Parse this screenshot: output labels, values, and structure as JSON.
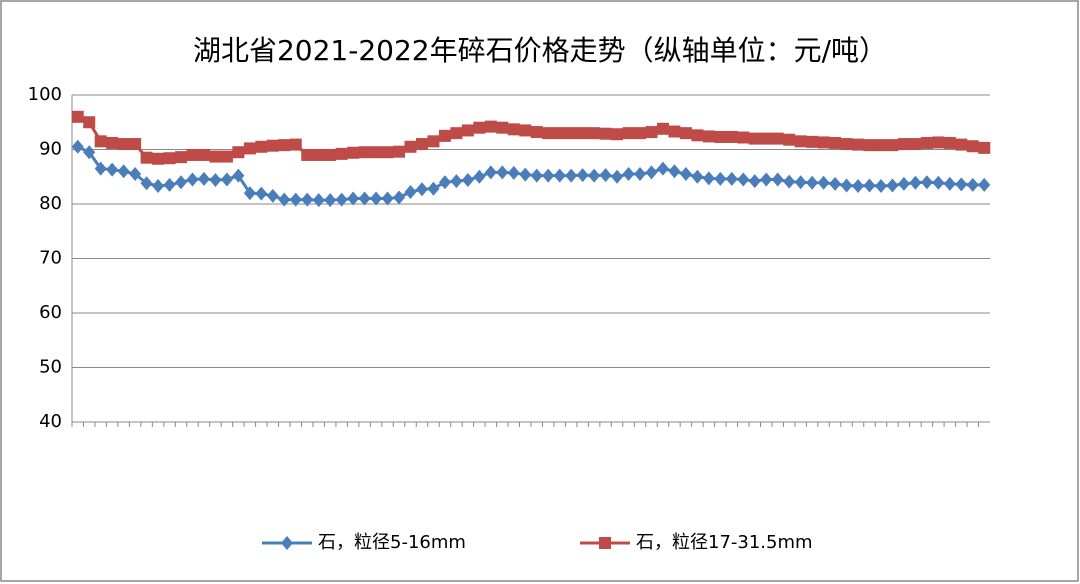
{
  "chart_data": {
    "type": "line",
    "title": "湖北省2021-2022年碎石价格走势（纵轴单位：元/吨）",
    "categories": [
      null,
      null,
      null,
      null,
      null,
      null,
      null,
      null,
      null,
      null,
      null,
      null,
      null,
      null,
      null,
      null,
      null,
      null,
      null,
      null,
      null,
      null,
      null,
      null,
      null,
      null,
      null,
      null,
      null,
      null,
      null,
      null,
      null,
      null,
      null,
      null,
      null,
      null,
      null,
      null,
      null,
      null,
      null,
      null,
      null,
      null,
      null,
      null,
      null,
      null,
      null,
      null,
      null,
      null,
      null,
      null,
      null,
      null,
      null,
      null,
      null,
      null,
      null,
      null,
      null,
      null,
      null,
      null,
      null,
      null,
      null,
      null,
      null,
      null,
      null,
      null,
      null,
      null,
      null,
      null
    ],
    "series": [
      {
        "name": "石，粒径5-16mm",
        "color": "#4a7ebb",
        "marker": "diamond",
        "values": [
          90.5,
          89.5,
          86.5,
          86.3,
          86,
          85.5,
          83.8,
          83.3,
          83.5,
          84,
          84.5,
          84.6,
          84.4,
          84.5,
          85.2,
          82,
          81.9,
          81.5,
          80.8,
          80.8,
          80.8,
          80.7,
          80.7,
          80.8,
          81,
          81,
          81,
          81,
          81.2,
          82.2,
          82.7,
          82.8,
          84,
          84.2,
          84.4,
          85,
          85.8,
          85.8,
          85.7,
          85.4,
          85.2,
          85.2,
          85.2,
          85.2,
          85.3,
          85.2,
          85.3,
          85,
          85.5,
          85.5,
          85.8,
          86.5,
          86,
          85.5,
          85,
          84.7,
          84.6,
          84.6,
          84.5,
          84.2,
          84.5,
          84.5,
          84.1,
          84,
          83.9,
          83.9,
          83.7,
          83.4,
          83.3,
          83.4,
          83.3,
          83.4,
          83.7,
          83.9,
          84,
          83.9,
          83.7,
          83.6,
          83.5,
          83.5
        ]
      },
      {
        "name": "石，粒径17-31.5mm",
        "color": "#be4b48",
        "marker": "square",
        "values": [
          96,
          95,
          91.5,
          91.2,
          91,
          91,
          88.5,
          88.3,
          88.4,
          88.6,
          89,
          89,
          88.7,
          88.7,
          89.5,
          90.2,
          90.5,
          90.7,
          90.8,
          90.9,
          89,
          89,
          89,
          89.2,
          89.4,
          89.5,
          89.5,
          89.5,
          89.6,
          90.5,
          91,
          91.5,
          92.5,
          93,
          93.5,
          94,
          94.2,
          94,
          93.7,
          93.5,
          93.2,
          93,
          93,
          93,
          93,
          93,
          92.9,
          92.8,
          93,
          93,
          93.2,
          93.8,
          93.3,
          93,
          92.6,
          92.4,
          92.3,
          92.3,
          92.2,
          92,
          92,
          92,
          91.8,
          91.5,
          91.4,
          91.3,
          91.2,
          91,
          90.9,
          90.8,
          90.8,
          90.8,
          91,
          91,
          91.2,
          91.3,
          91.2,
          90.9,
          90.6,
          90.3
        ]
      }
    ],
    "ylim": [
      40,
      100
    ],
    "yticks": [
      40,
      50,
      60,
      70,
      80,
      90,
      100
    ],
    "grid": true,
    "legend": "bottom"
  }
}
